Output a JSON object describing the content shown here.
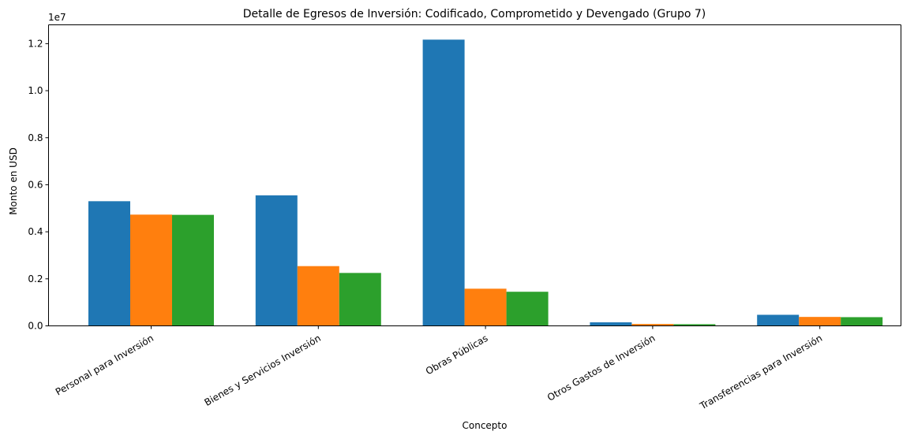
{
  "chart_data": {
    "type": "bar",
    "title": "Detalle de Egresos de Inversión: Codificado, Comprometido y Devengado (Grupo 7)",
    "xlabel": "Concepto",
    "ylabel": "Monto en USD",
    "y_offset_label": "1e7",
    "ylim": [
      0,
      12800000
    ],
    "yticks": [
      {
        "value": 0,
        "label": "0.0"
      },
      {
        "value": 2000000,
        "label": "0.2"
      },
      {
        "value": 4000000,
        "label": "0.4"
      },
      {
        "value": 6000000,
        "label": "0.6"
      },
      {
        "value": 8000000,
        "label": "0.8"
      },
      {
        "value": 10000000,
        "label": "1.0"
      },
      {
        "value": 12000000,
        "label": "1.2"
      }
    ],
    "categories": [
      "Personal para Inversión",
      "Bienes y Servicios Inversión",
      "Obras Públicas",
      "Otros Gastos de Inversión",
      "Transferencias para Inversión"
    ],
    "series": [
      {
        "color": "#1f77b4",
        "values": [
          5300000,
          5550000,
          12170000,
          150000,
          470000
        ]
      },
      {
        "color": "#ff7f0e",
        "values": [
          4730000,
          2540000,
          1580000,
          80000,
          380000
        ]
      },
      {
        "color": "#2ca02c",
        "values": [
          4720000,
          2250000,
          1450000,
          70000,
          370000
        ]
      }
    ],
    "grid": false,
    "legend": "none"
  }
}
